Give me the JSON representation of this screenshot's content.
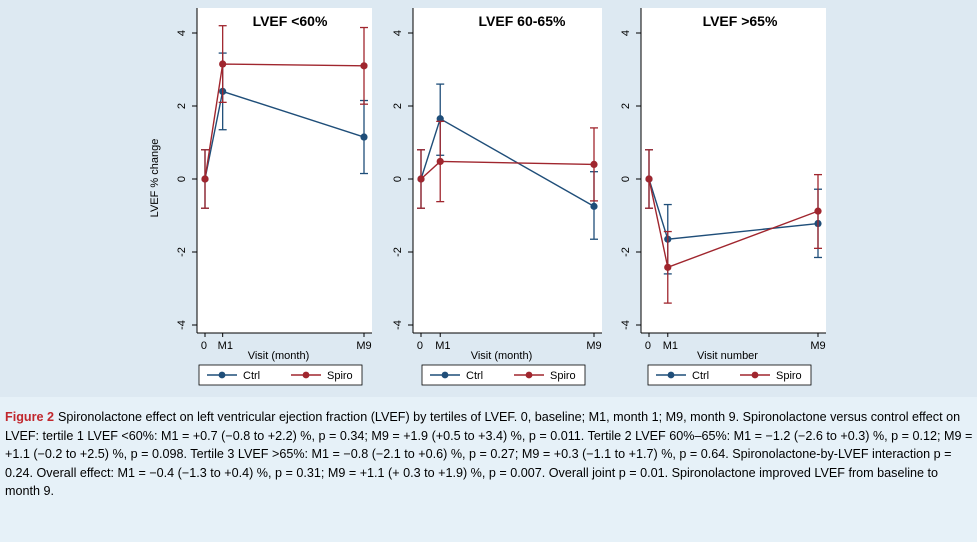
{
  "chart_data": [
    {
      "type": "line",
      "title": "LVEF <60%",
      "ylabel": "LVEF % change",
      "xlabel": "Visit (month)",
      "x_ticks": [
        "0",
        "M1",
        "M9"
      ],
      "x": [
        0,
        1,
        9
      ],
      "y_ticks": [
        "4",
        "2",
        "0",
        "-2",
        "-4"
      ],
      "ylim": [
        -4,
        4
      ],
      "legend": [
        "Ctrl",
        "Spiro"
      ],
      "series": [
        {
          "name": "Ctrl",
          "color": "#1f4e79",
          "y": [
            0,
            2.4,
            1.15
          ],
          "lo": [
            -0.8,
            1.35,
            0.15
          ],
          "hi": [
            0.8,
            3.45,
            2.15
          ]
        },
        {
          "name": "Spiro",
          "color": "#a0262e",
          "y": [
            0,
            3.15,
            3.1
          ],
          "lo": [
            -0.8,
            2.1,
            2.05
          ],
          "hi": [
            0.8,
            4.2,
            4.15
          ]
        }
      ]
    },
    {
      "type": "line",
      "title": "LVEF 60-65%",
      "ylabel": "",
      "xlabel": "Visit (month)",
      "x_ticks": [
        "0",
        "M1",
        "M9"
      ],
      "x": [
        0,
        1,
        9
      ],
      "y_ticks": [
        "4",
        "2",
        "0",
        "-2",
        "-4"
      ],
      "ylim": [
        -4,
        4
      ],
      "legend": [
        "Ctrl",
        "Spiro"
      ],
      "series": [
        {
          "name": "Ctrl",
          "color": "#1f4e79",
          "y": [
            0,
            1.65,
            -0.75
          ],
          "lo": [
            -0.8,
            0.65,
            -1.65
          ],
          "hi": [
            0.8,
            2.6,
            0.2
          ]
        },
        {
          "name": "Spiro",
          "color": "#a0262e",
          "y": [
            0,
            0.48,
            0.4
          ],
          "lo": [
            -0.8,
            -0.62,
            -0.6
          ],
          "hi": [
            0.8,
            1.58,
            1.4
          ]
        }
      ]
    },
    {
      "type": "line",
      "title": "LVEF >65%",
      "ylabel": "",
      "xlabel": "Visit number",
      "x_ticks": [
        "0",
        "M1",
        "M9"
      ],
      "x": [
        0,
        1,
        9
      ],
      "y_ticks": [
        "4",
        "2",
        "0",
        "-2",
        "-4"
      ],
      "ylim": [
        -4,
        4
      ],
      "legend": [
        "Ctrl",
        "Spiro"
      ],
      "series": [
        {
          "name": "Ctrl",
          "color": "#1f4e79",
          "y": [
            0,
            -1.65,
            -1.22
          ],
          "lo": [
            -0.8,
            -2.6,
            -2.15
          ],
          "hi": [
            0.8,
            -0.7,
            -0.28
          ]
        },
        {
          "name": "Spiro",
          "color": "#a0262e",
          "y": [
            0,
            -2.42,
            -0.88
          ],
          "lo": [
            -0.8,
            -3.4,
            -1.9
          ],
          "hi": [
            0.8,
            -1.44,
            0.12
          ]
        }
      ]
    }
  ],
  "caption": {
    "label": "Figure 2",
    "text": "Spironolactone effect on left ventricular ejection fraction (LVEF) by tertiles of LVEF. 0, baseline; M1, month 1; M9, month 9. Spironolactone versus control effect on LVEF: tertile 1 LVEF <60%: M1 = +0.7 (−0.8 to +2.2) %, p = 0.34; M9 = +1.9 (+0.5 to +3.4) %, p = 0.011. Tertile 2 LVEF 60%–65%: M1 = −1.2 (−2.6 to +0.3) %, p = 0.12; M9 = +1.1 (−0.2 to +2.5) %, p = 0.098. Tertile 3 LVEF >65%: M1 = −0.8 (−2.1 to +0.6) %, p = 0.27; M9 = +0.3 (−1.1 to +1.7) %, p = 0.64. Spironolactone-by-LVEF interaction p = 0.24. Overall effect: M1 = −0.4 (−1.3 to +0.4) %, p = 0.31; M9 = +1.1 (+ 0.3 to +1.9) %, p = 0.007. Overall joint p = 0.01. Spironolactone improved LVEF from baseline to month 9."
  }
}
